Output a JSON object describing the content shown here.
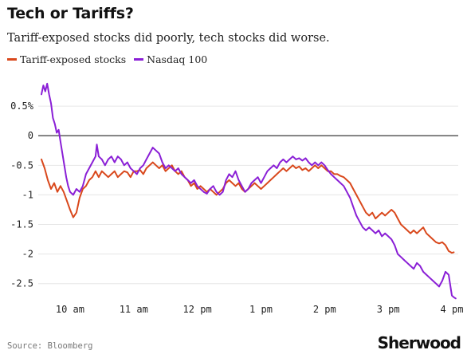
{
  "header": {
    "title": "Tech or Tariffs?",
    "subtitle": "Tariff-exposed stocks did poorly, tech stocks did worse."
  },
  "footer": {
    "source": "Source: Bloomberg",
    "logo": "Sherwood"
  },
  "chart_data": {
    "type": "line",
    "title": "Tech or Tariffs?",
    "subtitle": "Tariff-exposed stocks did poorly, tech stocks did worse.",
    "xlabel": "",
    "ylabel": "",
    "x_ticks": [
      "10 am",
      "11 am",
      "12 pm",
      "1 pm",
      "2 pm",
      "3 pm",
      "4 pm"
    ],
    "x_tick_hours": [
      10,
      11,
      12,
      13,
      14,
      15,
      16
    ],
    "xlim": [
      9.5,
      16.1
    ],
    "y_ticks": [
      0.5,
      0,
      -0.5,
      -1,
      -1.5,
      -2,
      -2.5
    ],
    "y_tick_labels": [
      "0.5%",
      "0",
      "-0.5",
      "-1",
      "-1.5",
      "-2",
      "-2.5"
    ],
    "ylim": [
      -2.8,
      1.0
    ],
    "grid": true,
    "legend_position": "top-left",
    "series": [
      {
        "name": "Tariff-exposed stocks",
        "color": "#d9481c",
        "points": [
          [
            9.55,
            -0.4
          ],
          [
            9.6,
            -0.55
          ],
          [
            9.65,
            -0.75
          ],
          [
            9.7,
            -0.9
          ],
          [
            9.75,
            -0.8
          ],
          [
            9.8,
            -0.95
          ],
          [
            9.85,
            -0.85
          ],
          [
            9.9,
            -0.95
          ],
          [
            9.95,
            -1.1
          ],
          [
            10.0,
            -1.25
          ],
          [
            10.05,
            -1.38
          ],
          [
            10.1,
            -1.3
          ],
          [
            10.15,
            -1.05
          ],
          [
            10.2,
            -0.9
          ],
          [
            10.25,
            -0.85
          ],
          [
            10.3,
            -0.75
          ],
          [
            10.35,
            -0.7
          ],
          [
            10.4,
            -0.6
          ],
          [
            10.45,
            -0.7
          ],
          [
            10.5,
            -0.6
          ],
          [
            10.55,
            -0.65
          ],
          [
            10.6,
            -0.7
          ],
          [
            10.65,
            -0.65
          ],
          [
            10.7,
            -0.6
          ],
          [
            10.75,
            -0.7
          ],
          [
            10.8,
            -0.65
          ],
          [
            10.85,
            -0.6
          ],
          [
            10.9,
            -0.62
          ],
          [
            10.95,
            -0.7
          ],
          [
            11.0,
            -0.6
          ],
          [
            11.05,
            -0.6
          ],
          [
            11.1,
            -0.58
          ],
          [
            11.15,
            -0.65
          ],
          [
            11.2,
            -0.55
          ],
          [
            11.25,
            -0.5
          ],
          [
            11.3,
            -0.45
          ],
          [
            11.35,
            -0.5
          ],
          [
            11.4,
            -0.55
          ],
          [
            11.45,
            -0.5
          ],
          [
            11.5,
            -0.6
          ],
          [
            11.55,
            -0.55
          ],
          [
            11.6,
            -0.5
          ],
          [
            11.65,
            -0.6
          ],
          [
            11.7,
            -0.65
          ],
          [
            11.75,
            -0.6
          ],
          [
            11.8,
            -0.7
          ],
          [
            11.85,
            -0.75
          ],
          [
            11.9,
            -0.85
          ],
          [
            11.95,
            -0.8
          ],
          [
            12.0,
            -0.9
          ],
          [
            12.05,
            -0.85
          ],
          [
            12.1,
            -0.9
          ],
          [
            12.15,
            -0.95
          ],
          [
            12.2,
            -0.9
          ],
          [
            12.25,
            -0.95
          ],
          [
            12.3,
            -1.0
          ],
          [
            12.35,
            -0.95
          ],
          [
            12.4,
            -0.9
          ],
          [
            12.45,
            -0.8
          ],
          [
            12.5,
            -0.75
          ],
          [
            12.55,
            -0.8
          ],
          [
            12.6,
            -0.85
          ],
          [
            12.65,
            -0.8
          ],
          [
            12.7,
            -0.9
          ],
          [
            12.75,
            -0.95
          ],
          [
            12.8,
            -0.9
          ],
          [
            12.85,
            -0.85
          ],
          [
            12.9,
            -0.8
          ],
          [
            12.95,
            -0.85
          ],
          [
            13.0,
            -0.9
          ],
          [
            13.05,
            -0.85
          ],
          [
            13.1,
            -0.8
          ],
          [
            13.15,
            -0.75
          ],
          [
            13.2,
            -0.7
          ],
          [
            13.25,
            -0.65
          ],
          [
            13.3,
            -0.6
          ],
          [
            13.35,
            -0.55
          ],
          [
            13.4,
            -0.6
          ],
          [
            13.45,
            -0.55
          ],
          [
            13.5,
            -0.5
          ],
          [
            13.55,
            -0.55
          ],
          [
            13.6,
            -0.52
          ],
          [
            13.65,
            -0.58
          ],
          [
            13.7,
            -0.55
          ],
          [
            13.75,
            -0.6
          ],
          [
            13.8,
            -0.55
          ],
          [
            13.85,
            -0.5
          ],
          [
            13.9,
            -0.55
          ],
          [
            13.95,
            -0.5
          ],
          [
            14.0,
            -0.55
          ],
          [
            14.05,
            -0.6
          ],
          [
            14.1,
            -0.6
          ],
          [
            14.15,
            -0.65
          ],
          [
            14.2,
            -0.65
          ],
          [
            14.25,
            -0.68
          ],
          [
            14.3,
            -0.7
          ],
          [
            14.35,
            -0.75
          ],
          [
            14.4,
            -0.8
          ],
          [
            14.45,
            -0.9
          ],
          [
            14.5,
            -1.0
          ],
          [
            14.55,
            -1.1
          ],
          [
            14.6,
            -1.2
          ],
          [
            14.65,
            -1.3
          ],
          [
            14.7,
            -1.35
          ],
          [
            14.75,
            -1.3
          ],
          [
            14.8,
            -1.4
          ],
          [
            14.85,
            -1.35
          ],
          [
            14.9,
            -1.3
          ],
          [
            14.95,
            -1.35
          ],
          [
            15.0,
            -1.3
          ],
          [
            15.05,
            -1.25
          ],
          [
            15.1,
            -1.3
          ],
          [
            15.15,
            -1.4
          ],
          [
            15.2,
            -1.5
          ],
          [
            15.25,
            -1.55
          ],
          [
            15.3,
            -1.6
          ],
          [
            15.35,
            -1.65
          ],
          [
            15.4,
            -1.6
          ],
          [
            15.45,
            -1.65
          ],
          [
            15.5,
            -1.6
          ],
          [
            15.55,
            -1.55
          ],
          [
            15.6,
            -1.65
          ],
          [
            15.65,
            -1.7
          ],
          [
            15.7,
            -1.75
          ],
          [
            15.75,
            -1.8
          ],
          [
            15.8,
            -1.82
          ],
          [
            15.85,
            -1.8
          ],
          [
            15.9,
            -1.85
          ],
          [
            15.95,
            -1.95
          ],
          [
            16.0,
            -1.98
          ],
          [
            16.03,
            -1.97
          ]
        ]
      },
      {
        "name": "Nasdaq 100",
        "color": "#8a1fd6",
        "points": [
          [
            9.55,
            0.7
          ],
          [
            9.58,
            0.85
          ],
          [
            9.61,
            0.75
          ],
          [
            9.64,
            0.88
          ],
          [
            9.67,
            0.7
          ],
          [
            9.7,
            0.55
          ],
          [
            9.73,
            0.3
          ],
          [
            9.76,
            0.2
          ],
          [
            9.79,
            0.05
          ],
          [
            9.82,
            0.1
          ],
          [
            9.85,
            -0.1
          ],
          [
            9.88,
            -0.3
          ],
          [
            9.91,
            -0.5
          ],
          [
            9.94,
            -0.7
          ],
          [
            9.97,
            -0.85
          ],
          [
            10.0,
            -0.95
          ],
          [
            10.05,
            -1.0
          ],
          [
            10.1,
            -0.9
          ],
          [
            10.15,
            -0.95
          ],
          [
            10.2,
            -0.85
          ],
          [
            10.25,
            -0.65
          ],
          [
            10.3,
            -0.55
          ],
          [
            10.35,
            -0.45
          ],
          [
            10.4,
            -0.35
          ],
          [
            10.42,
            -0.15
          ],
          [
            10.45,
            -0.35
          ],
          [
            10.5,
            -0.4
          ],
          [
            10.55,
            -0.5
          ],
          [
            10.6,
            -0.4
          ],
          [
            10.65,
            -0.35
          ],
          [
            10.7,
            -0.45
          ],
          [
            10.75,
            -0.35
          ],
          [
            10.8,
            -0.4
          ],
          [
            10.85,
            -0.5
          ],
          [
            10.9,
            -0.45
          ],
          [
            10.95,
            -0.55
          ],
          [
            11.0,
            -0.6
          ],
          [
            11.05,
            -0.65
          ],
          [
            11.1,
            -0.55
          ],
          [
            11.15,
            -0.5
          ],
          [
            11.2,
            -0.4
          ],
          [
            11.25,
            -0.3
          ],
          [
            11.3,
            -0.2
          ],
          [
            11.35,
            -0.25
          ],
          [
            11.4,
            -0.3
          ],
          [
            11.45,
            -0.45
          ],
          [
            11.5,
            -0.55
          ],
          [
            11.55,
            -0.5
          ],
          [
            11.6,
            -0.55
          ],
          [
            11.65,
            -0.6
          ],
          [
            11.7,
            -0.55
          ],
          [
            11.75,
            -0.65
          ],
          [
            11.8,
            -0.7
          ],
          [
            11.85,
            -0.75
          ],
          [
            11.9,
            -0.8
          ],
          [
            11.95,
            -0.75
          ],
          [
            12.0,
            -0.85
          ],
          [
            12.05,
            -0.9
          ],
          [
            12.1,
            -0.95
          ],
          [
            12.15,
            -0.98
          ],
          [
            12.2,
            -0.9
          ],
          [
            12.25,
            -0.85
          ],
          [
            12.3,
            -0.95
          ],
          [
            12.35,
            -1.0
          ],
          [
            12.4,
            -0.95
          ],
          [
            12.45,
            -0.75
          ],
          [
            12.5,
            -0.65
          ],
          [
            12.55,
            -0.7
          ],
          [
            12.6,
            -0.6
          ],
          [
            12.65,
            -0.75
          ],
          [
            12.7,
            -0.85
          ],
          [
            12.75,
            -0.95
          ],
          [
            12.8,
            -0.9
          ],
          [
            12.85,
            -0.8
          ],
          [
            12.9,
            -0.75
          ],
          [
            12.95,
            -0.7
          ],
          [
            13.0,
            -0.8
          ],
          [
            13.05,
            -0.7
          ],
          [
            13.1,
            -0.6
          ],
          [
            13.15,
            -0.55
          ],
          [
            13.2,
            -0.5
          ],
          [
            13.25,
            -0.55
          ],
          [
            13.3,
            -0.45
          ],
          [
            13.35,
            -0.4
          ],
          [
            13.4,
            -0.45
          ],
          [
            13.45,
            -0.4
          ],
          [
            13.5,
            -0.35
          ],
          [
            13.55,
            -0.4
          ],
          [
            13.6,
            -0.38
          ],
          [
            13.65,
            -0.42
          ],
          [
            13.7,
            -0.38
          ],
          [
            13.75,
            -0.45
          ],
          [
            13.8,
            -0.5
          ],
          [
            13.85,
            -0.45
          ],
          [
            13.9,
            -0.5
          ],
          [
            13.95,
            -0.45
          ],
          [
            14.0,
            -0.5
          ],
          [
            14.05,
            -0.58
          ],
          [
            14.1,
            -0.65
          ],
          [
            14.15,
            -0.7
          ],
          [
            14.2,
            -0.75
          ],
          [
            14.25,
            -0.8
          ],
          [
            14.3,
            -0.85
          ],
          [
            14.35,
            -0.95
          ],
          [
            14.4,
            -1.05
          ],
          [
            14.45,
            -1.2
          ],
          [
            14.5,
            -1.35
          ],
          [
            14.55,
            -1.45
          ],
          [
            14.6,
            -1.55
          ],
          [
            14.65,
            -1.6
          ],
          [
            14.7,
            -1.55
          ],
          [
            14.75,
            -1.6
          ],
          [
            14.8,
            -1.65
          ],
          [
            14.85,
            -1.6
          ],
          [
            14.9,
            -1.7
          ],
          [
            14.95,
            -1.65
          ],
          [
            15.0,
            -1.7
          ],
          [
            15.05,
            -1.75
          ],
          [
            15.1,
            -1.85
          ],
          [
            15.15,
            -2.0
          ],
          [
            15.2,
            -2.05
          ],
          [
            15.25,
            -2.1
          ],
          [
            15.3,
            -2.15
          ],
          [
            15.35,
            -2.2
          ],
          [
            15.4,
            -2.25
          ],
          [
            15.45,
            -2.15
          ],
          [
            15.5,
            -2.2
          ],
          [
            15.55,
            -2.3
          ],
          [
            15.6,
            -2.35
          ],
          [
            15.65,
            -2.4
          ],
          [
            15.7,
            -2.45
          ],
          [
            15.75,
            -2.5
          ],
          [
            15.8,
            -2.55
          ],
          [
            15.85,
            -2.45
          ],
          [
            15.9,
            -2.3
          ],
          [
            15.95,
            -2.35
          ],
          [
            16.0,
            -2.7
          ],
          [
            16.03,
            -2.73
          ],
          [
            16.06,
            -2.75
          ]
        ]
      }
    ]
  }
}
